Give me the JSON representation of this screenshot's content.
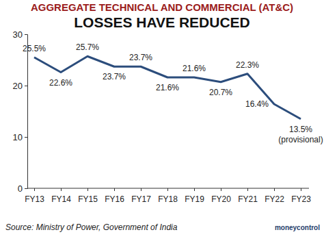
{
  "chart_data": {
    "type": "line",
    "title": "AGGREGATE TECHNICAL AND COMMERCIAL (AT&C)",
    "subtitle": "LOSSES HAVE REDUCED",
    "categories": [
      "FY13",
      "FY14",
      "FY15",
      "FY16",
      "FY17",
      "FY18",
      "FY19",
      "FY20",
      "FY21",
      "FY22",
      "FY23"
    ],
    "values": [
      25.5,
      22.6,
      25.7,
      23.7,
      23.7,
      21.6,
      21.6,
      20.7,
      22.3,
      16.4,
      13.5
    ],
    "value_labels": [
      "25.5%",
      "22.6%",
      "25.7%",
      "23.7%",
      "23.7%",
      "21.6%",
      "21.6%",
      "20.7%",
      "22.3%",
      "16.4%",
      "13.5%"
    ],
    "color": "#2c4d7c",
    "ylim": [
      0,
      30
    ],
    "yticks": [
      0,
      10,
      20,
      30
    ],
    "grid": false,
    "data_labels": true,
    "annotations": [
      "(provisional)"
    ],
    "source": "Source: Ministry of Power, Government of India",
    "brand": "moneycontrol"
  }
}
